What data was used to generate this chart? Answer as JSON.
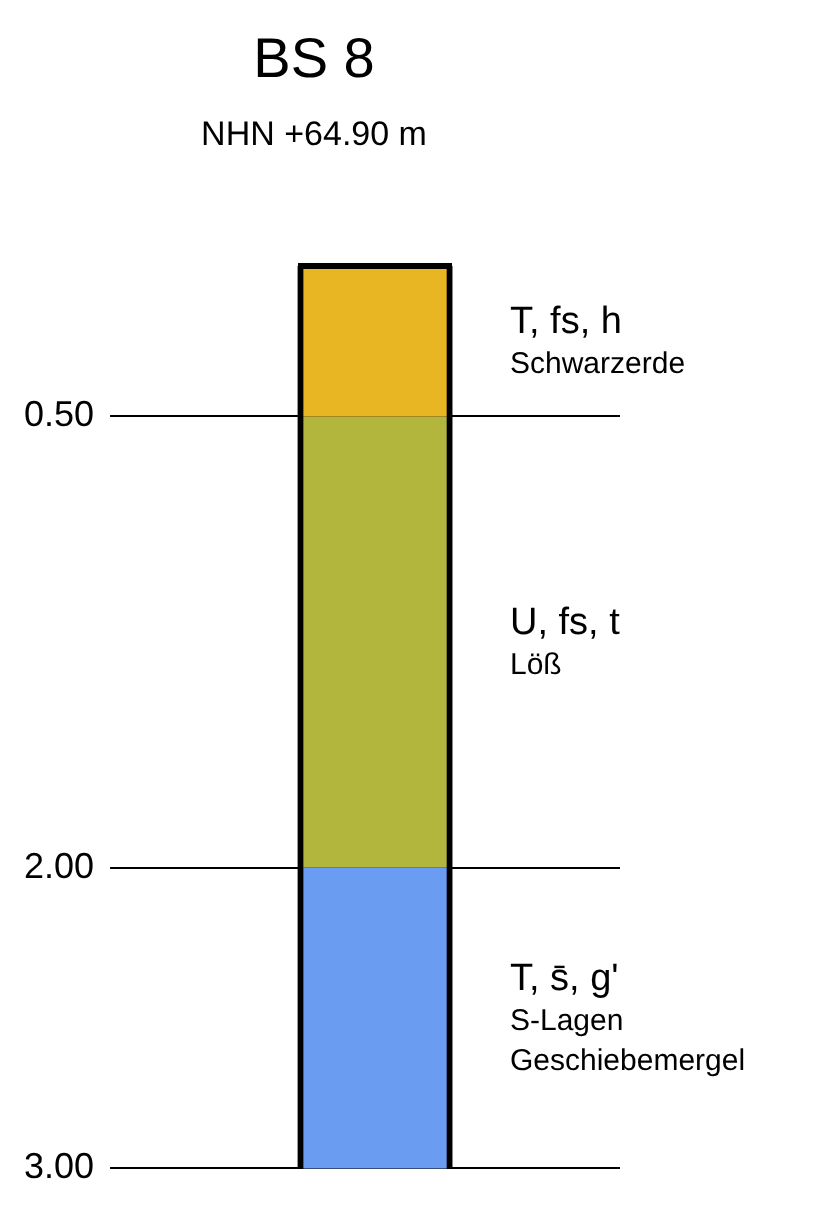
{
  "chart_data": {
    "type": "bar",
    "stacked": true,
    "title": "BS 8",
    "subtitle": "NHN +64.90 m",
    "categories": [
      null
    ],
    "series": [
      {
        "name": "T, fs, h",
        "color": "#e8b623",
        "values": [
          0.5
        ]
      },
      {
        "name": "U, fs, t",
        "color": "#b3b63c",
        "values": [
          1.5
        ]
      },
      {
        "name": "T, s̄, g'",
        "color": "#6a9cf2",
        "values": [
          1.0
        ]
      }
    ],
    "ylim": [
      3.0,
      0
    ],
    "yticks": [
      {
        "value": 0.5,
        "label": "0.50"
      },
      {
        "value": 2,
        "label": "2.00"
      },
      {
        "value": 3,
        "label": "3.00"
      }
    ],
    "grid": "y",
    "legend": false,
    "tick_labels": "y",
    "annotations": [
      "Schwarzerde",
      "Löß",
      "S-Lagen\nGeschiebemergel"
    ]
  }
}
